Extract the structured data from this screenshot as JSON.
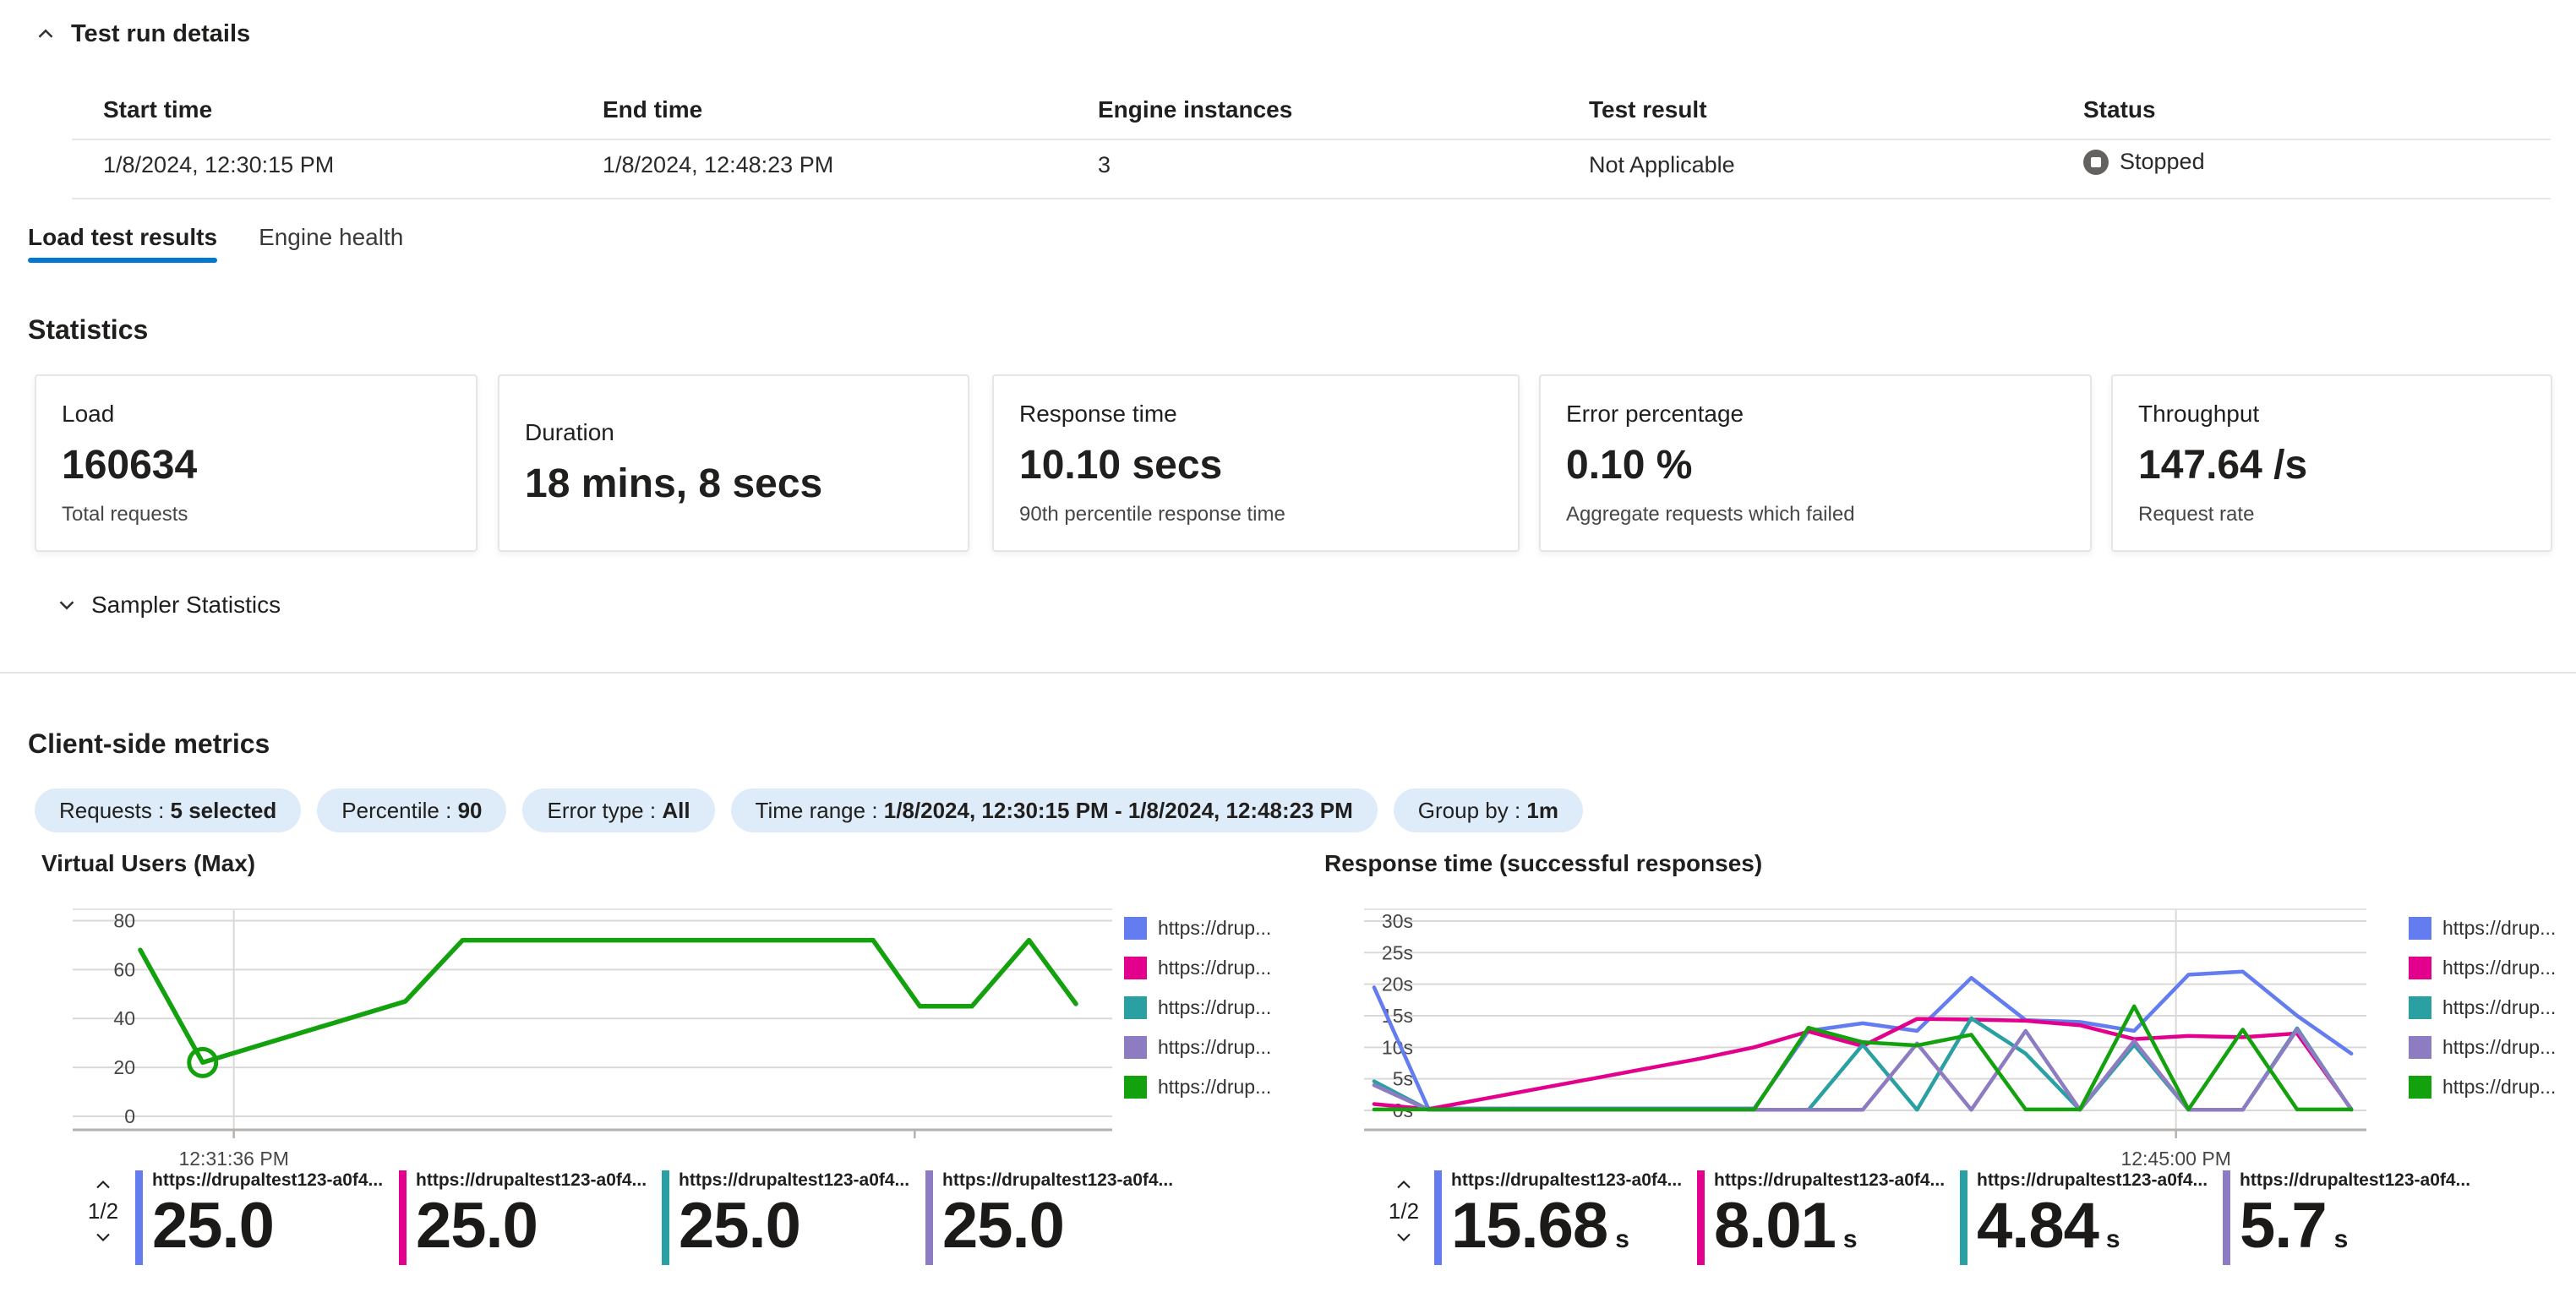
{
  "header": {
    "title": "Test run details"
  },
  "table": {
    "columns": [
      "Start time",
      "End time",
      "Engine instances",
      "Test result",
      "Status"
    ],
    "row": {
      "start_time": "1/8/2024, 12:30:15 PM",
      "end_time": "1/8/2024, 12:48:23 PM",
      "engine_instances": "3",
      "test_result": "Not Applicable",
      "status": "Stopped"
    }
  },
  "tabs": {
    "items": [
      {
        "label": "Load test results"
      },
      {
        "label": "Engine health"
      }
    ],
    "active_index": 0
  },
  "statistics": {
    "heading": "Statistics",
    "cards": [
      {
        "title": "Load",
        "value": "160634",
        "subtitle": "Total requests"
      },
      {
        "title": "Duration",
        "value": "18 mins, 8 secs",
        "subtitle": ""
      },
      {
        "title": "Response time",
        "value": "10.10 secs",
        "subtitle": "90th percentile response time"
      },
      {
        "title": "Error percentage",
        "value": "0.10 %",
        "subtitle": "Aggregate requests which failed"
      },
      {
        "title": "Throughput",
        "value": "147.64 /s",
        "subtitle": "Request rate"
      }
    ],
    "sampler_label": "Sampler Statistics"
  },
  "client_metrics": {
    "heading": "Client-side metrics",
    "filters": [
      {
        "label": "Requests",
        "sep": " : ",
        "value": "5 selected"
      },
      {
        "label": "Percentile",
        "sep": " : ",
        "value": "90"
      },
      {
        "label": "Error type",
        "sep": " : ",
        "value": "All"
      },
      {
        "label": "Time range",
        "sep": " : ",
        "value": "1/8/2024, 12:30:15 PM - 1/8/2024, 12:48:23 PM"
      },
      {
        "label": "Group by",
        "sep": " : ",
        "value": "1m"
      }
    ]
  },
  "colors": {
    "accent": "#0078d4",
    "blue": "#637cef",
    "magenta": "#e3008c",
    "teal": "#2aa0a2",
    "purple": "#8e7cc3",
    "green": "#13a10e",
    "grid": "#dbd9d7",
    "axis": "#b5b2af",
    "status_gray": "#636261",
    "pill_bg": "#deecf9"
  },
  "chart_data": [
    {
      "type": "line",
      "title": "Virtual Users (Max)",
      "ylim": [
        0,
        85
      ],
      "y_ticks": [
        0,
        20,
        40,
        60,
        80
      ],
      "y_suffix": "",
      "zero_gap": 16,
      "label_x": 74,
      "v_gridlines": [
        0.155
      ],
      "x_ticks": [
        {
          "x": 0.155,
          "label": "12:31:36 PM"
        },
        {
          "x": 0.81,
          "label": ""
        }
      ],
      "legend": [
        {
          "label": "https://drup...",
          "color": "blue"
        },
        {
          "label": "https://drup...",
          "color": "magenta"
        },
        {
          "label": "https://drup...",
          "color": "teal"
        },
        {
          "label": "https://drup...",
          "color": "purple"
        },
        {
          "label": "https://drup...",
          "color": "green"
        }
      ],
      "series": [
        {
          "name": "https://drupaltest123-a0f4...",
          "color": "green",
          "width": 5.5,
          "points": [
            [
              0.065,
              68
            ],
            [
              0.125,
              22
            ],
            [
              0.32,
              47
            ],
            [
              0.375,
              72
            ],
            [
              0.77,
              72
            ],
            [
              0.815,
              45
            ],
            [
              0.865,
              45
            ],
            [
              0.92,
              72
            ],
            [
              0.965,
              46
            ]
          ],
          "marker": [
            0.125,
            22
          ]
        }
      ]
    },
    {
      "type": "line",
      "title": "Response time (successful responses)",
      "ylim": [
        0,
        32
      ],
      "y_ticks": [
        0,
        5,
        10,
        15,
        20,
        25,
        30
      ],
      "y_suffix": "s",
      "zero_gap": 23,
      "label_x": 58,
      "v_gridlines": [
        0.81
      ],
      "x_ticks": [
        {
          "x": 0.81,
          "label": "12:45:00 PM"
        }
      ],
      "x_start": 0.01,
      "x_end": 0.985,
      "legend": [
        {
          "label": "https://drup...",
          "color": "blue"
        },
        {
          "label": "https://drup...",
          "color": "magenta"
        },
        {
          "label": "https://drup...",
          "color": "teal"
        },
        {
          "label": "https://drup...",
          "color": "purple"
        },
        {
          "label": "https://drup...",
          "color": "green"
        }
      ],
      "series": [
        {
          "name": "https://drupaltest123-a0f4...",
          "color": "blue",
          "width": 4.5,
          "values": [
            19.5,
            0.3,
            0.3,
            0.3,
            0.3,
            0.3,
            0.3,
            0.3,
            12.6,
            13.8,
            12.6,
            21.0,
            14.3,
            14.0,
            12.6,
            21.5,
            22.0,
            15.0,
            9.0
          ]
        },
        {
          "name": "https://drupaltest123-a0f4...",
          "color": "magenta",
          "width": 4.5,
          "values": [
            1.0,
            0.2,
            1.8,
            3.4,
            5.0,
            6.6,
            8.2,
            10.0,
            12.5,
            10.2,
            14.5,
            14.4,
            14.2,
            13.5,
            11.3,
            11.8,
            11.6,
            12.2,
            0.2
          ]
        },
        {
          "name": "https://drupaltest123-a0f4...",
          "color": "teal",
          "width": 4.5,
          "values": [
            4.6,
            0.1,
            0.1,
            0.1,
            0.1,
            0.1,
            0.1,
            0.1,
            0.1,
            10.4,
            0.1,
            14.6,
            9.0,
            0.1,
            10.4,
            0.1,
            0.1,
            13.0,
            0.1
          ]
        },
        {
          "name": "https://drupaltest123-a0f4...",
          "color": "purple",
          "width": 4.5,
          "values": [
            4.0,
            0.1,
            0.1,
            0.1,
            0.1,
            0.1,
            0.1,
            0.1,
            0.1,
            0.1,
            10.6,
            0.1,
            12.6,
            0.1,
            11.0,
            0.1,
            0.1,
            12.8,
            0.1
          ]
        },
        {
          "name": "https://drupaltest123-a0f4...",
          "color": "green",
          "width": 4.5,
          "values": [
            0.15,
            0.15,
            0.15,
            0.15,
            0.15,
            0.15,
            0.15,
            0.15,
            13.1,
            10.8,
            10.3,
            12.0,
            0.15,
            0.15,
            16.5,
            0.15,
            12.8,
            0.15,
            0.15
          ]
        }
      ]
    }
  ],
  "vu_summary": {
    "pager": "1/2",
    "cards": [
      {
        "url": "https://drupaltest123-a0f4...",
        "value": "25.0",
        "unit": "",
        "color": "blue"
      },
      {
        "url": "https://drupaltest123-a0f4...",
        "value": "25.0",
        "unit": "",
        "color": "magenta"
      },
      {
        "url": "https://drupaltest123-a0f4...",
        "value": "25.0",
        "unit": "",
        "color": "teal"
      },
      {
        "url": "https://drupaltest123-a0f4...",
        "value": "25.0",
        "unit": "",
        "color": "purple"
      }
    ]
  },
  "rt_summary": {
    "pager": "1/2",
    "cards": [
      {
        "url": "https://drupaltest123-a0f4...",
        "value": "15.68",
        "unit": "s",
        "color": "blue"
      },
      {
        "url": "https://drupaltest123-a0f4...",
        "value": "8.01",
        "unit": "s",
        "color": "magenta"
      },
      {
        "url": "https://drupaltest123-a0f4...",
        "value": "4.84",
        "unit": "s",
        "color": "teal"
      },
      {
        "url": "https://drupaltest123-a0f4...",
        "value": "5.7",
        "unit": "s",
        "color": "purple"
      }
    ]
  }
}
